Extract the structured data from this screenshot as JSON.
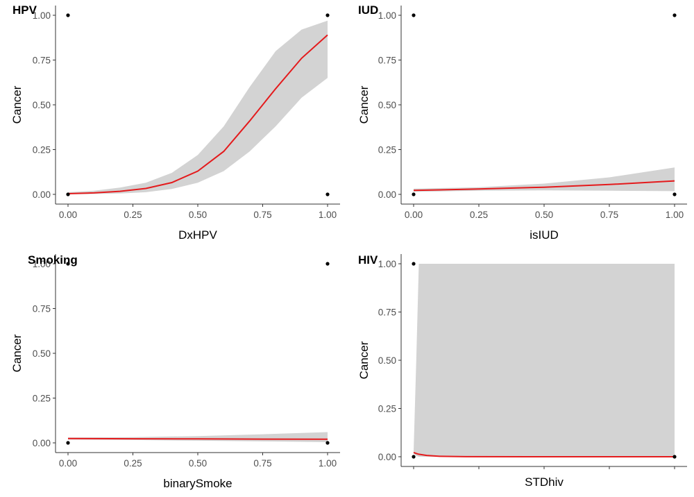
{
  "colors": {
    "fit_line": "#e41a1c",
    "ribbon": "#d3d3d3",
    "points": "#000000",
    "axis": "#333333"
  },
  "chart_data": [
    {
      "type": "line",
      "panel_tag": "HPV",
      "xlabel": "DxHPV",
      "ylabel": "Cancer",
      "xlim": [
        0,
        1
      ],
      "ylim": [
        0,
        1
      ],
      "x_ticks": [
        "0.00",
        "0.25",
        "0.50",
        "0.75",
        "1.00"
      ],
      "y_ticks": [
        "0.00",
        "0.25",
        "0.50",
        "0.75",
        "1.00"
      ],
      "grid": false,
      "points": [
        [
          0,
          1
        ],
        [
          1,
          1
        ],
        [
          0,
          0
        ],
        [
          1,
          0
        ]
      ],
      "fit": {
        "x": [
          0.0,
          0.1,
          0.2,
          0.3,
          0.4,
          0.5,
          0.6,
          0.7,
          0.8,
          0.9,
          1.0
        ],
        "y": [
          0.004,
          0.008,
          0.017,
          0.033,
          0.066,
          0.13,
          0.24,
          0.41,
          0.59,
          0.76,
          0.89
        ],
        "lower": [
          0.0,
          0.002,
          0.005,
          0.012,
          0.03,
          0.065,
          0.13,
          0.24,
          0.38,
          0.54,
          0.65
        ],
        "upper": [
          0.012,
          0.02,
          0.038,
          0.065,
          0.12,
          0.22,
          0.38,
          0.6,
          0.8,
          0.92,
          0.97
        ]
      }
    },
    {
      "type": "line",
      "panel_tag": "IUD",
      "xlabel": "isIUD",
      "ylabel": "Cancer",
      "xlim": [
        0,
        1
      ],
      "ylim": [
        0,
        1
      ],
      "x_ticks": [
        "0.00",
        "0.25",
        "0.50",
        "0.75",
        "1.00"
      ],
      "y_ticks": [
        "0.00",
        "0.25",
        "0.50",
        "0.75",
        "1.00"
      ],
      "grid": false,
      "points": [
        [
          0,
          1
        ],
        [
          1,
          1
        ],
        [
          0,
          0
        ],
        [
          1,
          0
        ]
      ],
      "fit": {
        "x": [
          0.0,
          0.25,
          0.5,
          0.75,
          1.0
        ],
        "y": [
          0.022,
          0.03,
          0.04,
          0.055,
          0.075
        ],
        "lower": [
          0.014,
          0.02,
          0.022,
          0.02,
          0.018
        ],
        "upper": [
          0.032,
          0.04,
          0.06,
          0.095,
          0.15
        ]
      }
    },
    {
      "type": "line",
      "panel_tag": "Smoking",
      "xlabel": "binarySmoke",
      "ylabel": "Cancer",
      "xlim": [
        0,
        1
      ],
      "ylim": [
        0,
        1
      ],
      "x_ticks": [
        "0.00",
        "0.25",
        "0.50",
        "0.75",
        "1.00"
      ],
      "y_ticks": [
        "0.00",
        "0.25",
        "0.50",
        "0.75",
        "1.00"
      ],
      "grid": false,
      "points": [
        [
          0,
          1
        ],
        [
          1,
          1
        ],
        [
          0,
          0
        ],
        [
          1,
          0
        ]
      ],
      "fit": {
        "x": [
          0.0,
          0.25,
          0.5,
          0.75,
          1.0
        ],
        "y": [
          0.024,
          0.023,
          0.022,
          0.021,
          0.02
        ],
        "lower": [
          0.018,
          0.016,
          0.012,
          0.008,
          0.004
        ],
        "upper": [
          0.03,
          0.032,
          0.038,
          0.048,
          0.06
        ]
      }
    },
    {
      "type": "line",
      "panel_tag": "HIV",
      "xlabel": "STDhiv",
      "ylabel": "Cancer",
      "xlim": [
        0,
        1
      ],
      "ylim": [
        0,
        1
      ],
      "x_ticks": [
        "",
        "",
        "",
        "",
        ""
      ],
      "y_ticks": [
        "0.00",
        "0.25",
        "0.50",
        "0.75",
        "1.00"
      ],
      "grid": false,
      "points": [
        [
          0,
          1
        ],
        [
          0,
          0
        ],
        [
          1,
          0
        ]
      ],
      "fit": {
        "x": [
          0.0,
          0.01,
          0.02,
          0.05,
          0.1,
          0.2,
          0.5,
          1.0
        ],
        "y": [
          0.022,
          0.017,
          0.013,
          0.007,
          0.002,
          0.0005,
          0.0,
          0.0
        ],
        "lower": [
          0.015,
          0.005,
          0.0,
          0.0,
          0.0,
          0.0,
          0.0,
          0.0
        ],
        "upper": [
          0.03,
          0.5,
          1.0,
          1.0,
          1.0,
          1.0,
          1.0,
          1.0
        ]
      }
    }
  ]
}
